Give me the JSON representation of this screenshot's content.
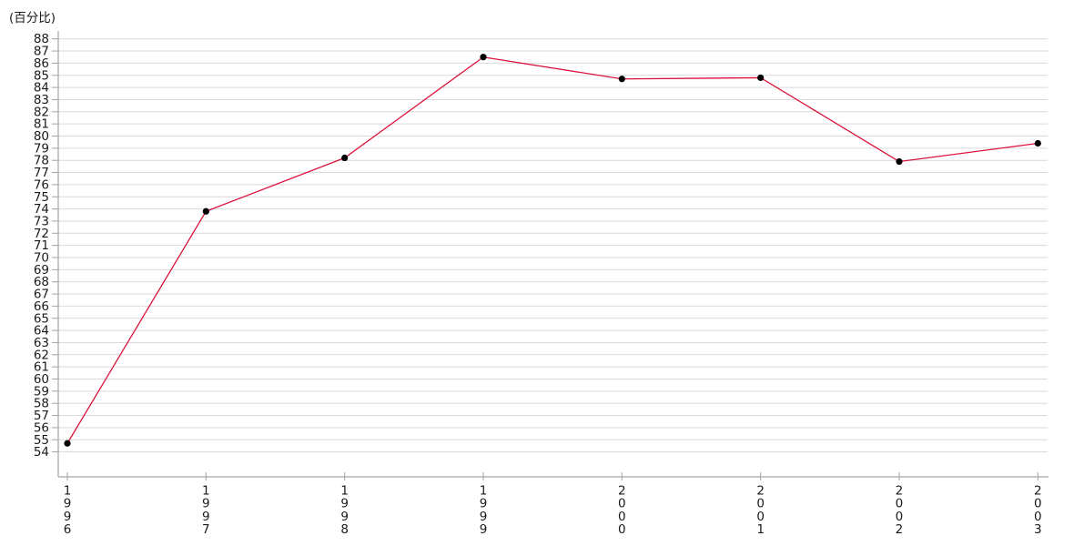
{
  "chart_data": {
    "type": "line",
    "title": "(百分比)",
    "x": [
      "1996",
      "1997",
      "1998",
      "1999",
      "2000",
      "2001",
      "2002",
      "2003"
    ],
    "series": [
      {
        "name": "百分比",
        "values": [
          54.7,
          73.8,
          78.2,
          86.5,
          84.7,
          84.8,
          77.9,
          79.4
        ]
      }
    ],
    "xlabel": "",
    "ylabel": "(百分比)",
    "ylim": [
      54,
      88
    ],
    "ytick_step": 1,
    "grid": "horizontal-only",
    "legend_position": "none",
    "x_label_orientation": "vertical-stacked-digits",
    "colors": {
      "line": "#dc143c",
      "marker": "#000000",
      "gridline": "#d9d9d9",
      "axis": "#a3a3a3",
      "tick_text": "#1a1a1a"
    }
  }
}
